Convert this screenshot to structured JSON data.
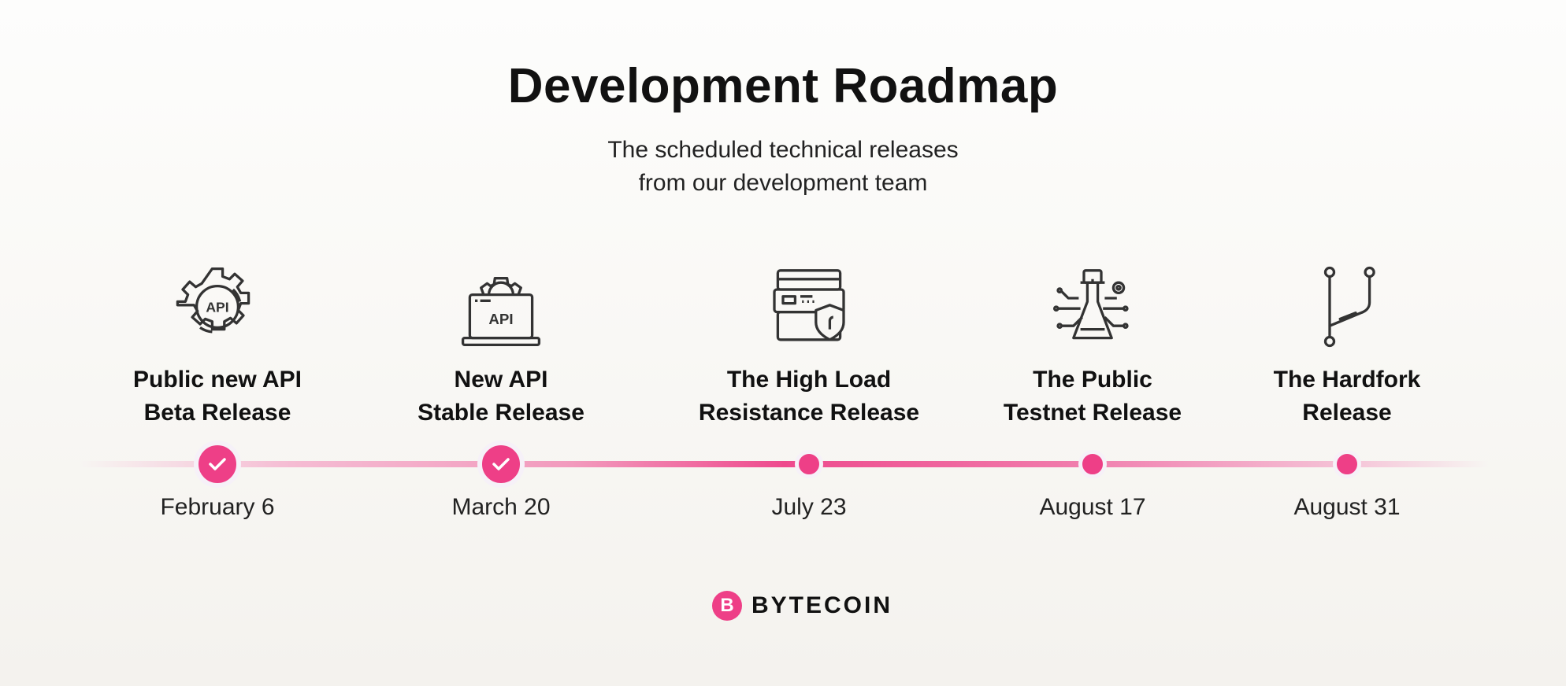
{
  "header": {
    "title": "Development Roadmap",
    "subtitle_line1": "The scheduled technical releases",
    "subtitle_line2": "from our development team"
  },
  "milestones": [
    {
      "label_line1": "Public new API",
      "label_line2": "Beta Release",
      "date": "February 6",
      "status": "completed",
      "icon": "api-gear-icon"
    },
    {
      "label_line1": "New API",
      "label_line2": "Stable Release",
      "date": "March 20",
      "status": "completed",
      "icon": "api-laptop-icon"
    },
    {
      "label_line1": "The High Load",
      "label_line2": "Resistance Release",
      "date": "July 23",
      "status": "upcoming",
      "icon": "server-shield-icon"
    },
    {
      "label_line1": "The Public",
      "label_line2": "Testnet Release",
      "date": "August 17",
      "status": "upcoming",
      "icon": "flask-circuit-icon"
    },
    {
      "label_line1": "The Hardfork",
      "label_line2": "Release",
      "date": "August 31",
      "status": "upcoming",
      "icon": "git-branch-icon"
    }
  ],
  "icon_text": "API",
  "brand": {
    "name": "BYTECOIN",
    "mark": "B"
  },
  "colors": {
    "accent": "#ee3f87",
    "text": "#111111",
    "icon_stroke": "#333333"
  }
}
